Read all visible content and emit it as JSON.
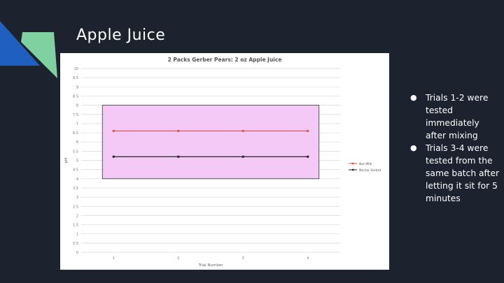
{
  "slide": {
    "title": "Apple Juice",
    "bullets": [
      "Trials 1-2 were tested immediately after mixing",
      "Trials 3-4 were tested from the same batch after  letting it sit for 5 minutes"
    ]
  },
  "colors": {
    "background": "#1c222e",
    "accent_blue": "#1f5fbf",
    "accent_green": "#7fd1a0",
    "highlight_fill": "#f5c9f5",
    "series_red": "#d9534f",
    "series_black": "#222222"
  },
  "chart_data": {
    "type": "line",
    "title": "2 Packs Gerber Pears: 2 oz Apple Juice",
    "xlabel": "Trial Number",
    "ylabel": "pH",
    "x": [
      1,
      2,
      3,
      4
    ],
    "ylim": [
      0,
      10
    ],
    "yticks": [
      "0",
      "0.5",
      "1",
      "1.5",
      "2",
      "2.5",
      "3",
      "3.5",
      "4",
      "4.5",
      "5",
      "5.5",
      "6",
      "6.5",
      "7",
      "7.5",
      "8",
      "8.5",
      "9",
      "9.5",
      "10"
    ],
    "xticks": [
      "1",
      "2",
      "3",
      "4"
    ],
    "grid": true,
    "legend": "right",
    "highlight_band": {
      "y_from": 4,
      "y_to": 8
    },
    "series": [
      {
        "name": "Nut Milk",
        "values": [
          6.6,
          6.6,
          6.6,
          6.6
        ],
        "color": "#d9534f"
      },
      {
        "name": "Nectar Sorbet",
        "values": [
          5.2,
          5.2,
          5.2,
          5.2
        ],
        "color": "#222222"
      }
    ]
  }
}
